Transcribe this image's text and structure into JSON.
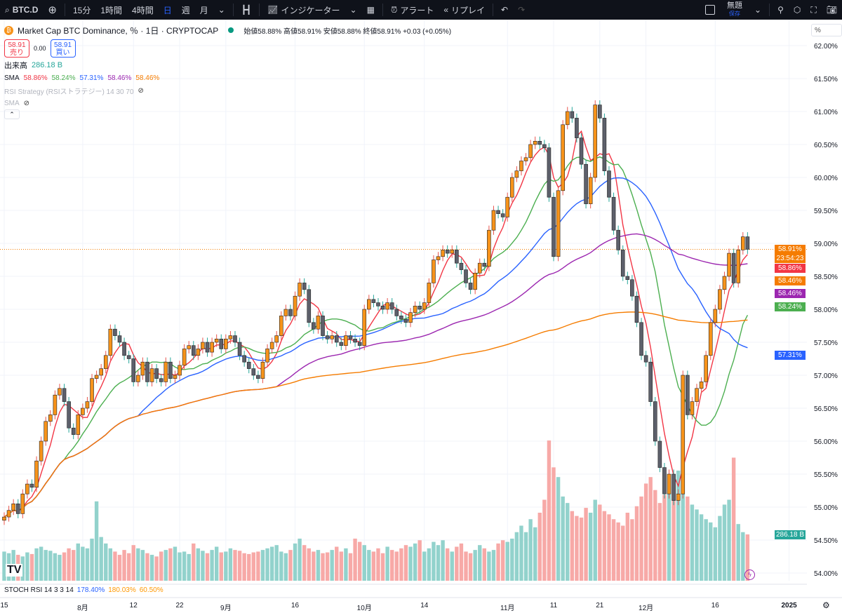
{
  "toolbar": {
    "symbol": "BTC.D",
    "intervals": [
      "15分",
      "1時間",
      "4時間",
      "日",
      "週",
      "月"
    ],
    "active_interval": "日",
    "indicators": "インジケーター",
    "alert": "アラート",
    "replay": "リプレイ",
    "layout_title": "無題",
    "layout_save": "保存"
  },
  "legend": {
    "title": "Market Cap BTC Dominance, ％ · 1日 · CRYPTOCAP",
    "ohlc": "始値58.88% 高値58.91% 安値58.88% 終値58.91% +0.03 (+0.05%)",
    "sell_price": "58.91",
    "sell_label": "売り",
    "spread": "0.00",
    "buy_price": "58.91",
    "buy_label": "買い",
    "volume_label": "出来高",
    "volume_value": "286.18 B",
    "sma_label": "SMA",
    "sma_values": [
      "58.86%",
      "58.24%",
      "57.31%",
      "58.46%",
      "58.46%"
    ],
    "rsi_strategy": "RSI Strategy (RSIストラテジー) 14 30 70",
    "sma2": "SMA"
  },
  "stoch": {
    "label": "STOCH RSI 14 3 3 14",
    "v1": "178.40%",
    "v2": "180.03%",
    "v3": "60.50%"
  },
  "colors": {
    "up": "#f7931a",
    "down": "#5d606b",
    "vol_up": "#92d2cc",
    "vol_down": "#f7a9a7",
    "sma": [
      "#f23645",
      "#4caf50",
      "#2962ff",
      "#9c27b0",
      "#f57c00"
    ]
  },
  "price_axis": {
    "unit": "%",
    "current": "58.91%",
    "countdown": "23:54:23",
    "tags": [
      {
        "text": "58.86%",
        "color": "#f23645",
        "value": 58.78
      },
      {
        "text": "58.46%",
        "color": "#f57c00",
        "value": 58.44
      },
      {
        "text": "58.46%",
        "color": "#9c27b0",
        "value": 58.24
      },
      {
        "text": "58.24%",
        "color": "#4caf50",
        "value": 58.04
      },
      {
        "text": "57.31%",
        "color": "#2962ff",
        "value": 57.31
      },
      {
        "text": "286.18 B",
        "color": "#26a69a",
        "value": 54.59
      }
    ]
  },
  "chart_data": {
    "type": "candlestick",
    "title": "Market Cap BTC Dominance, ％ · 1日 · CRYPTOCAP",
    "ylim": [
      53.9,
      62.2
    ],
    "y_ticks": [
      "62.00%",
      "61.50%",
      "61.00%",
      "60.50%",
      "60.00%",
      "59.50%",
      "59.00%",
      "58.50%",
      "58.00%",
      "57.50%",
      "57.00%",
      "56.50%",
      "56.00%",
      "55.50%",
      "55.00%",
      "54.50%",
      "54.00%"
    ],
    "x_ticks": [
      {
        "label": "15",
        "day": 0
      },
      {
        "label": "8月",
        "day": 17
      },
      {
        "label": "12",
        "day": 28
      },
      {
        "label": "22",
        "day": 38
      },
      {
        "label": "9月",
        "day": 48
      },
      {
        "label": "16",
        "day": 63
      },
      {
        "label": "10月",
        "day": 78
      },
      {
        "label": "14",
        "day": 91
      },
      {
        "label": "11月",
        "day": 109
      },
      {
        "label": "11",
        "day": 119
      },
      {
        "label": "21",
        "day": 129
      },
      {
        "label": "12月",
        "day": 139
      },
      {
        "label": "16",
        "day": 154
      },
      {
        "label": "2025",
        "day": 170
      }
    ],
    "start": "07-15",
    "close_pct": [
      54.85,
      54.95,
      55.05,
      54.9,
      55.2,
      55.35,
      55.3,
      55.7,
      56.0,
      56.3,
      56.4,
      56.7,
      56.8,
      56.6,
      56.2,
      56.1,
      56.4,
      56.5,
      56.6,
      56.95,
      57.0,
      57.1,
      57.3,
      57.7,
      57.6,
      57.5,
      57.3,
      57.25,
      56.9,
      57.0,
      57.2,
      56.9,
      57.1,
      56.95,
      56.9,
      57.2,
      56.95,
      57.0,
      57.15,
      57.4,
      57.45,
      57.3,
      57.4,
      57.5,
      57.35,
      57.5,
      57.55,
      57.4,
      57.55,
      57.6,
      57.5,
      57.3,
      57.2,
      57.1,
      57.0,
      56.95,
      57.2,
      57.4,
      57.5,
      57.6,
      57.9,
      58.0,
      57.9,
      58.2,
      58.4,
      58.3,
      57.8,
      57.7,
      57.9,
      57.6,
      57.55,
      57.6,
      57.5,
      57.45,
      57.6,
      57.55,
      57.5,
      57.45,
      58.0,
      58.15,
      58.1,
      58.05,
      58.0,
      58.1,
      58.0,
      57.9,
      57.85,
      57.8,
      57.95,
      58.05,
      58.0,
      58.1,
      58.4,
      58.75,
      58.8,
      58.9,
      58.85,
      58.9,
      58.7,
      58.6,
      58.4,
      58.3,
      58.55,
      58.7,
      58.65,
      59.2,
      59.5,
      59.45,
      59.4,
      59.7,
      60.0,
      60.1,
      60.25,
      60.3,
      60.5,
      60.55,
      60.5,
      60.45,
      59.7,
      58.8,
      59.8,
      60.8,
      61.0,
      60.9,
      60.6,
      60.2,
      59.6,
      60.0,
      61.1,
      60.9,
      60.1,
      59.7,
      59.2,
      58.9,
      58.5,
      58.45,
      58.2,
      57.8,
      57.3,
      57.2,
      56.6,
      56.0,
      55.6,
      55.2,
      55.5,
      55.1,
      55.2,
      57.0,
      56.4,
      56.6,
      56.8,
      56.9,
      57.3,
      57.8,
      58.0,
      58.3,
      58.5,
      58.85,
      58.4,
      58.9,
      59.1,
      58.91
    ],
    "volume_B": [
      180,
      170,
      190,
      160,
      150,
      175,
      165,
      200,
      210,
      190,
      185,
      170,
      160,
      175,
      200,
      190,
      230,
      210,
      200,
      260,
      490,
      270,
      230,
      200,
      180,
      160,
      190,
      170,
      220,
      200,
      190,
      170,
      160,
      150,
      180,
      190,
      200,
      210,
      175,
      180,
      165,
      230,
      200,
      185,
      170,
      190,
      210,
      175,
      180,
      200,
      190,
      185,
      170,
      165,
      175,
      180,
      190,
      200,
      210,
      220,
      180,
      170,
      190,
      230,
      260,
      220,
      200,
      180,
      190,
      170,
      175,
      190,
      210,
      180,
      200,
      170,
      260,
      240,
      220,
      190,
      180,
      200,
      170,
      210,
      190,
      180,
      200,
      220,
      210,
      230,
      250,
      180,
      200,
      240,
      220,
      250,
      200,
      180,
      210,
      230,
      180,
      170,
      190,
      220,
      200,
      180,
      190,
      230,
      250,
      240,
      260,
      300,
      340,
      300,
      380,
      330,
      420,
      500,
      866,
      700,
      640,
      520,
      480,
      430,
      400,
      390,
      450,
      420,
      500,
      470,
      430,
      410,
      380,
      360,
      340,
      420,
      380,
      460,
      520,
      600,
      640,
      560,
      480,
      530,
      540,
      620,
      680,
      610,
      520,
      470,
      440,
      410,
      380,
      360,
      330,
      400,
      470,
      500,
      760,
      350,
      300,
      286.18
    ],
    "sma_periods": [
      5,
      14,
      30,
      60,
      200
    ]
  }
}
